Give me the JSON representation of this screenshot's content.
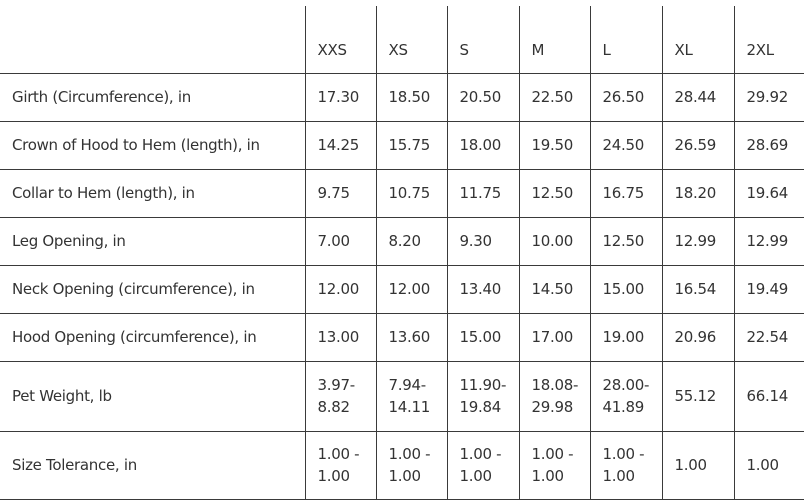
{
  "table": {
    "columns": [
      "XXS",
      "XS",
      "S",
      "M",
      "L",
      "XL",
      "2XL"
    ],
    "rows": [
      [
        "Girth (Circumference), in",
        "17.30",
        "18.50",
        "20.50",
        "22.50",
        "26.50",
        "28.44",
        "29.92"
      ],
      [
        "Crown of Hood to Hem (length), in",
        "14.25",
        "15.75",
        "18.00",
        "19.50",
        "24.50",
        "26.59",
        "28.69"
      ],
      [
        "Collar to Hem (length), in",
        "9.75",
        "10.75",
        "11.75",
        "12.50",
        "16.75",
        "18.20",
        "19.64"
      ],
      [
        "Leg Opening, in",
        "7.00",
        "8.20",
        "9.30",
        "10.00",
        "12.50",
        "12.99",
        "12.99"
      ],
      [
        "Neck Opening (circumference), in",
        "12.00",
        "12.00",
        "13.40",
        "14.50",
        "15.00",
        "16.54",
        "19.49"
      ],
      [
        "Hood Opening (circumference), in",
        "13.00",
        "13.60",
        "15.00",
        "17.00",
        "19.00",
        "20.96",
        "22.54"
      ],
      [
        "Pet Weight, lb",
        "3.97-8.82",
        "7.94-14.11",
        "11.90-19.84",
        "18.08-29.98",
        "28.00-41.89",
        "55.12",
        "66.14"
      ],
      [
        "Size Tolerance, in",
        "1.00 - 1.00",
        "1.00 - 1.00",
        "1.00 - 1.00",
        "1.00 - 1.00",
        "1.00 - 1.00",
        "1.00",
        "1.00"
      ]
    ]
  }
}
